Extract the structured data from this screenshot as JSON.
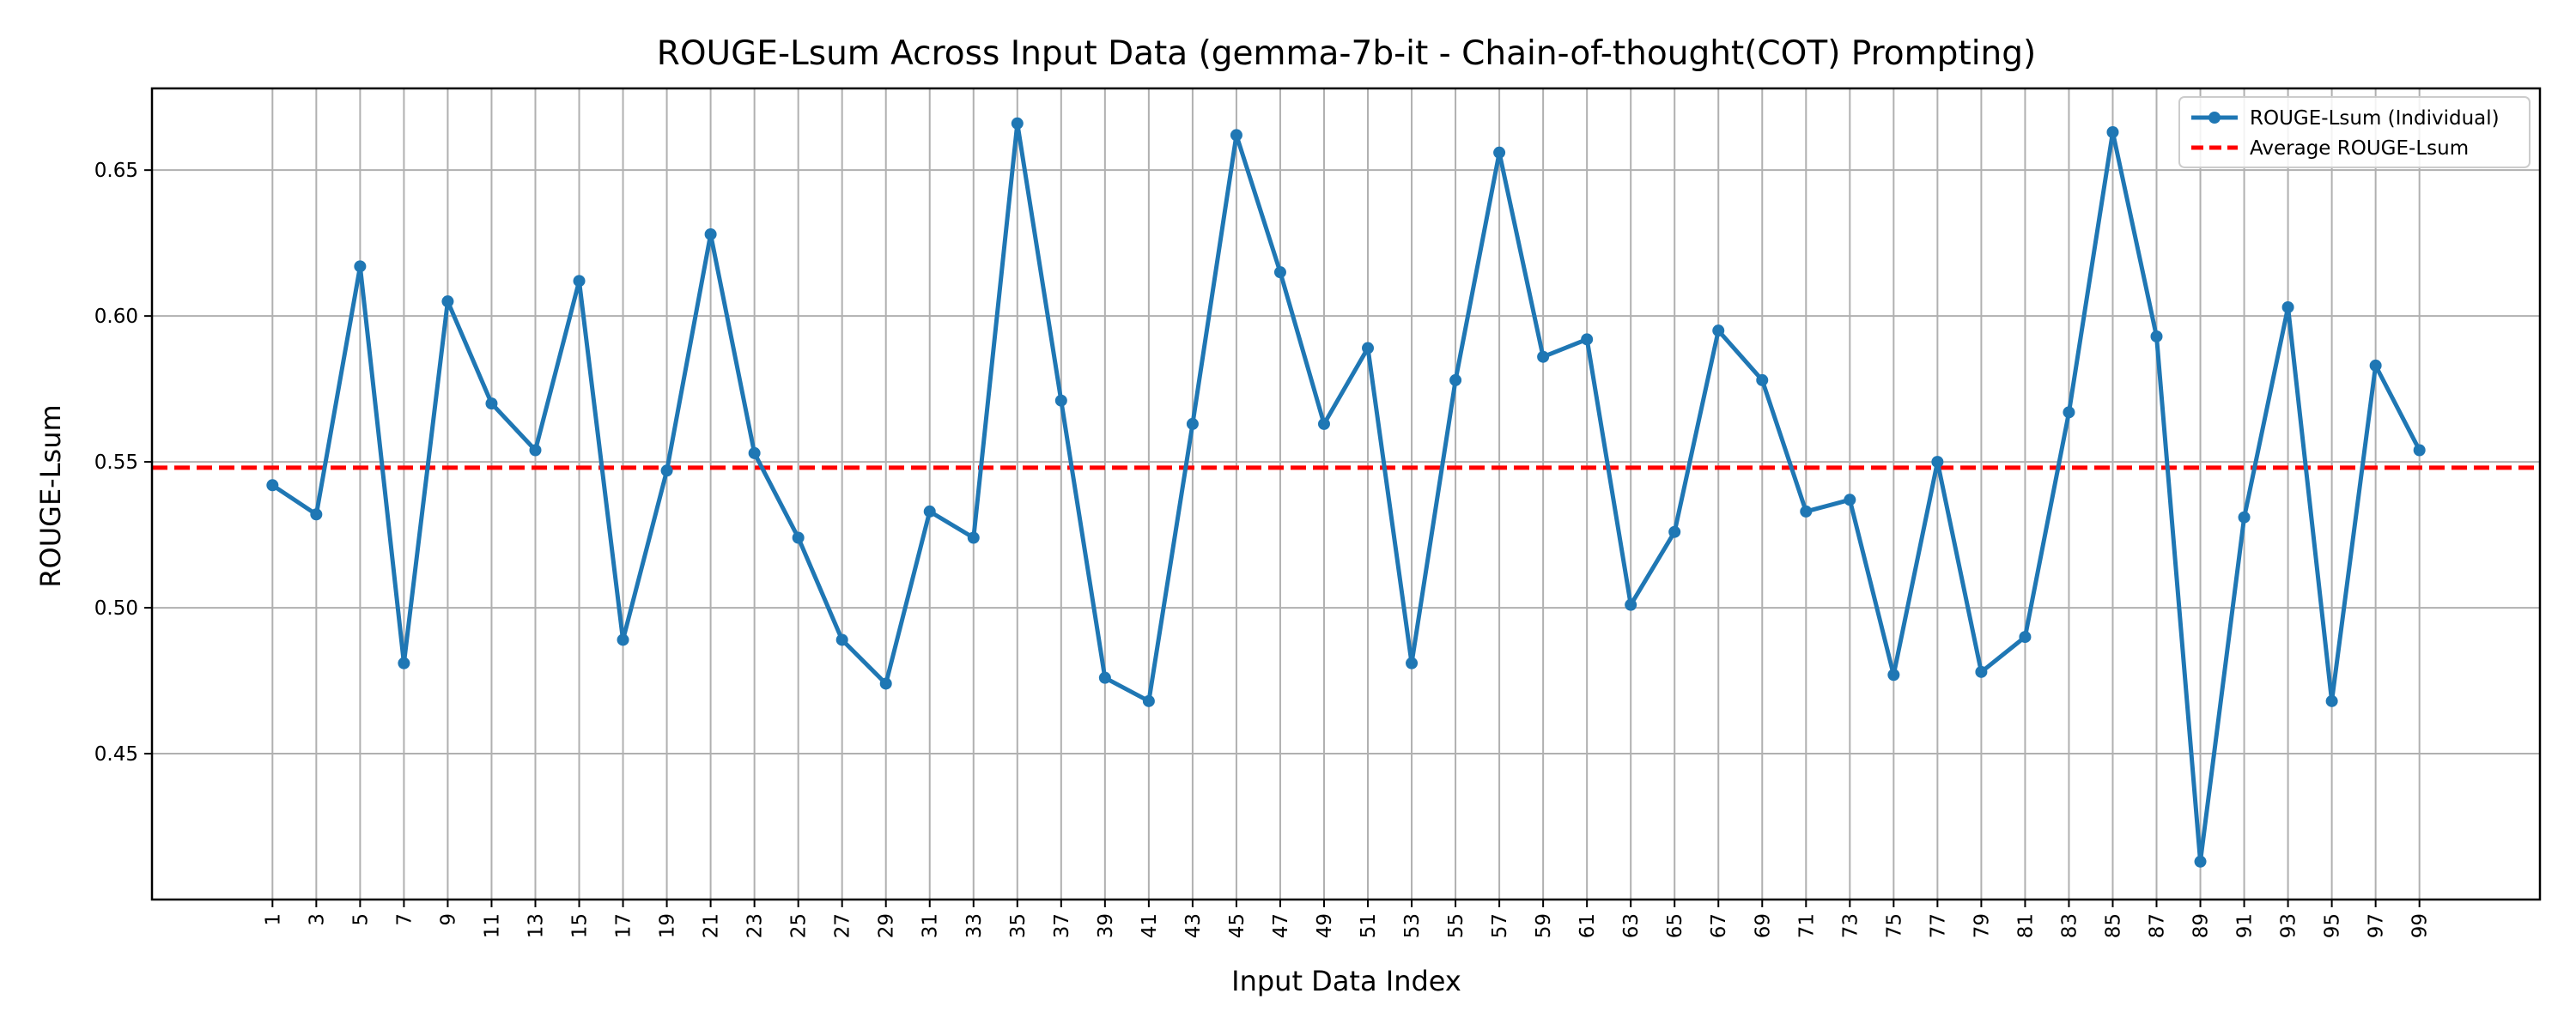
{
  "chart_data": {
    "type": "line",
    "title": "ROUGE-Lsum Across Input Data (gemma-7b-it - Chain-of-thought(COT) Prompting)",
    "xlabel": "Input Data Index",
    "ylabel": "ROUGE-Lsum",
    "x": [
      1,
      3,
      5,
      7,
      9,
      11,
      13,
      15,
      17,
      19,
      21,
      23,
      25,
      27,
      29,
      31,
      33,
      35,
      37,
      39,
      41,
      43,
      45,
      47,
      49,
      51,
      53,
      55,
      57,
      59,
      61,
      63,
      65,
      67,
      69,
      71,
      73,
      75,
      77,
      79,
      81,
      83,
      85,
      87,
      89,
      91,
      93,
      95,
      97,
      99
    ],
    "x_ticks": [
      "1",
      "3",
      "5",
      "7",
      "9",
      "11",
      "13",
      "15",
      "17",
      "19",
      "21",
      "23",
      "25",
      "27",
      "29",
      "31",
      "33",
      "35",
      "37",
      "39",
      "41",
      "43",
      "45",
      "47",
      "49",
      "51",
      "53",
      "55",
      "57",
      "59",
      "61",
      "63",
      "65",
      "67",
      "69",
      "71",
      "73",
      "75",
      "77",
      "79",
      "81",
      "83",
      "85",
      "87",
      "89",
      "91",
      "93",
      "95",
      "97",
      "99"
    ],
    "xlim": [
      -4.5,
      104.5
    ],
    "ylim": [
      0.4,
      0.678
    ],
    "y_ticks": [
      0.45,
      0.5,
      0.55,
      0.6,
      0.65
    ],
    "y_tick_labels": [
      "0.45",
      "0.50",
      "0.55",
      "0.60",
      "0.65"
    ],
    "grid": true,
    "legend_position": "top-right",
    "series": [
      {
        "name": "ROUGE-Lsum (Individual)",
        "color": "#1f77b4",
        "style": "solid-markers",
        "values": [
          0.542,
          0.532,
          0.617,
          0.481,
          0.605,
          0.57,
          0.554,
          0.612,
          0.489,
          0.547,
          0.628,
          0.553,
          0.524,
          0.489,
          0.474,
          0.533,
          0.524,
          0.666,
          0.571,
          0.476,
          0.468,
          0.563,
          0.662,
          0.615,
          0.563,
          0.589,
          0.481,
          0.578,
          0.656,
          0.586,
          0.592,
          0.501,
          0.526,
          0.595,
          0.578,
          0.533,
          0.537,
          0.477,
          0.55,
          0.478,
          0.49,
          0.567,
          0.663,
          0.593,
          0.413,
          0.531,
          0.603,
          0.468,
          0.583,
          0.554
        ]
      }
    ],
    "reference_lines": [
      {
        "name": "Average ROUGE-Lsum",
        "value": 0.548,
        "color": "#ff0000",
        "style": "dashed"
      }
    ]
  }
}
